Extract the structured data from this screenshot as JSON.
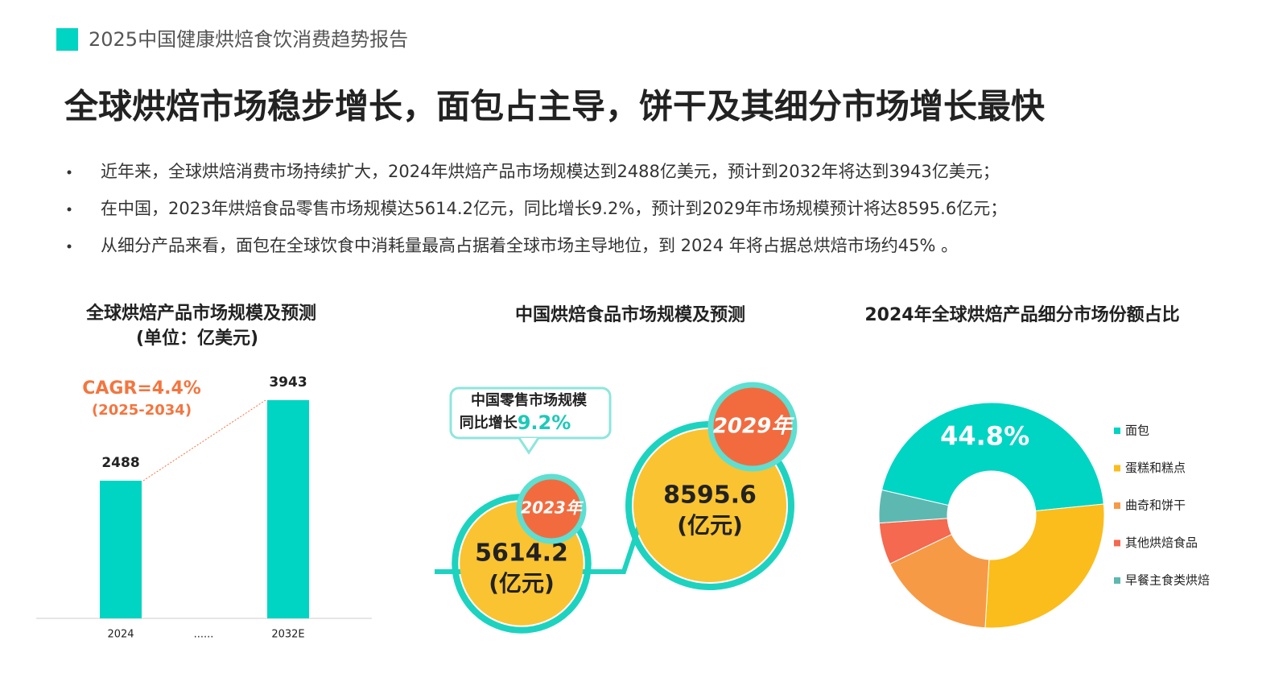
{
  "header": {
    "title": "2025中国健康烘焙食饮消费趋势报告"
  },
  "headline": "全球烘焙市场稳步增长，面包占主导，饼干及其细分市场增长最快",
  "bullets": [
    "近年来，全球烘焙消费市场持续扩大，2024年烘焙产品市场规模达到2488亿美元，预计到2032年将达到3943亿美元；",
    "在中国，2023年烘焙食品零售市场规模达5614.2亿元，同比增长9.2%，预计到2029年市场规模预计将达8595.6亿元；",
    "从细分产品来看，面包在全球饮食中消耗量最高占据着全球市场主导地位，到 2024 年将占据总烘焙市场约45% 。"
  ],
  "chart_data": [
    {
      "type": "bar",
      "title": "全球烘焙产品市场规模及预测",
      "subtitle": "(单位：亿美元)",
      "categories": [
        "2024",
        "......",
        "2032E"
      ],
      "values": [
        2488,
        null,
        3943
      ],
      "color": "#00d4c3",
      "annotation": "CAGR=4.4%",
      "annotation_sub": "(2025-2034)"
    },
    {
      "type": "bubble",
      "title": "中国烘焙食品市场规模及预测",
      "categories": [
        "2023年",
        "2029年"
      ],
      "values": [
        5614.2,
        8595.6
      ],
      "unit_label": "(亿元)",
      "color": "#f9c332",
      "callout": [
        "中国零售市场规模",
        "同比增长"
      ],
      "callout_value": "9.2%"
    },
    {
      "type": "pie",
      "title": "2024年全球烘焙产品细分市场份额占比",
      "categories": [
        "面包",
        "蛋糕和糕点",
        "曲奇和饼干",
        "其他烘焙食品",
        "早餐主食类烘焙"
      ],
      "values": [
        44.8,
        27.5,
        17,
        6,
        4.7
      ],
      "value_labels": [
        "44.8%",
        null,
        null,
        null,
        null
      ],
      "colors": [
        "#00d4c3",
        "#fbbd1c",
        "#f79a45",
        "#f4694f",
        "#5db8b2"
      ]
    }
  ]
}
